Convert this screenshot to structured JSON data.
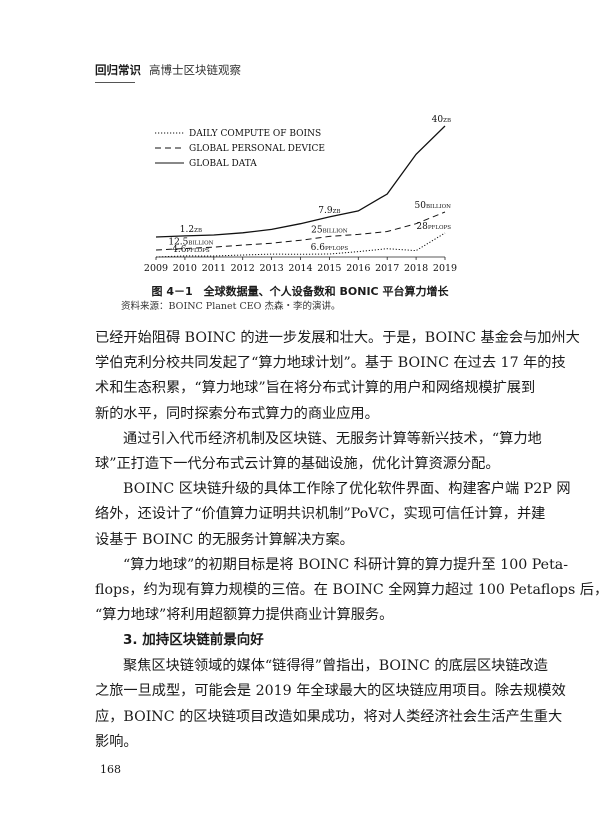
{
  "header": {
    "section": "回归常识",
    "book_title": "高博士区块链观察"
  },
  "chart_data": {
    "type": "line",
    "x": [
      2009,
      2010,
      2011,
      2012,
      2013,
      2014,
      2015,
      2016,
      2017,
      2018,
      2019
    ],
    "x_tick_labels": [
      "2009",
      "2010",
      "2011",
      "2012",
      "2013",
      "2014",
      "2015",
      "2016",
      "2017",
      "2018",
      "2019"
    ],
    "legend_placement": "top-left",
    "grid": false,
    "series": [
      {
        "name": "DAILY COMPUTE OF BOINS",
        "style": "dotted",
        "unit": "PFLOPS",
        "values": [
          3.5,
          4.6,
          4.5,
          5.5,
          6.5,
          6.3,
          6.6,
          9,
          12,
          10,
          28
        ]
      },
      {
        "name": "GLOBAL PERSONAL DEVICE",
        "style": "dashed",
        "unit": "BILLION",
        "values": [
          11,
          12.5,
          14,
          16,
          18,
          21,
          25,
          27,
          30,
          38,
          50
        ]
      },
      {
        "name": "GLOBAL DATA",
        "style": "solid",
        "unit": "ZB",
        "values": [
          0.8,
          1.2,
          1.5,
          2.3,
          3.5,
          5.5,
          7.9,
          10,
          16,
          30,
          40
        ]
      }
    ],
    "data_labels": [
      {
        "series": 2,
        "year": 2010,
        "value": "1.2",
        "unit": "ZB"
      },
      {
        "series": 2,
        "year": 2015,
        "value": "7.9",
        "unit": "ZB"
      },
      {
        "series": 2,
        "year": 2019,
        "value": "40",
        "unit": "ZB"
      },
      {
        "series": 1,
        "year": 2010,
        "value": "12.5",
        "unit": "BILLION"
      },
      {
        "series": 1,
        "year": 2015,
        "value": "25",
        "unit": "BILLION"
      },
      {
        "series": 1,
        "year": 2019,
        "value": "50",
        "unit": "BILLION"
      },
      {
        "series": 0,
        "year": 2010,
        "value": "4.6",
        "unit": "PFLOPS"
      },
      {
        "series": 0,
        "year": 2015,
        "value": "6.6",
        "unit": "PFLOPS"
      },
      {
        "series": 0,
        "year": 2019,
        "value": "28",
        "unit": "PFLOPS"
      }
    ]
  },
  "figure": {
    "caption": "图 4－1　全球数据量、个人设备数和 BONIC 平台算力增长",
    "source": "资料来源：BOINC Planet CEO 杰森・李的演讲。"
  },
  "body": {
    "lines": [
      {
        "text": "已经开始阻碍 BOINC 的进一步发展和壮大。于是，BOINC 基金会与加州大",
        "kind": "normal"
      },
      {
        "text": "学伯克利分校共同发起了“算力地球计划”。基于 BOINC 在过去 17 年的技",
        "kind": "normal"
      },
      {
        "text": "术和生态积累，“算力地球”旨在将分布式计算的用户和网络规模扩展到",
        "kind": "normal"
      },
      {
        "text": "新的水平，同时探索分布式算力的商业应用。",
        "kind": "last"
      },
      {
        "text": "通过引入代币经济机制及区块链、无服务计算等新兴技术，“算力地",
        "kind": "indent"
      },
      {
        "text": "球”正打造下一代分布式云计算的基础设施，优化计算资源分配。",
        "kind": "last"
      },
      {
        "text": "BOINC 区块链升级的具体工作除了优化软件界面、构建客户端 P2P 网",
        "kind": "indent"
      },
      {
        "text": "络外，还设计了“价值算力证明共识机制”PoVC，实现可信任计算，并建",
        "kind": "normal"
      },
      {
        "text": "设基于 BOINC 的无服务计算解决方案。",
        "kind": "last"
      },
      {
        "text": "“算力地球”的初期目标是将 BOINC 科研计算的算力提升至 100 Peta-",
        "kind": "indent"
      },
      {
        "text": "flops，约为现有算力规模的三倍。在 BOINC 全网算力超过 100 Petaflops 后，",
        "kind": "normal"
      },
      {
        "text": "“算力地球”将利用超额算力提供商业计算服务。",
        "kind": "last"
      },
      {
        "text": "3. 加持区块链前景向好",
        "kind": "heading"
      },
      {
        "text": "聚焦区块链领域的媒体“链得得”曾指出，BOINC 的底层区块链改造",
        "kind": "indent"
      },
      {
        "text": "之旅一旦成型，可能会是 2019 年全球最大的区块链应用项目。除去规模效",
        "kind": "normal"
      },
      {
        "text": "应，BOINC 的区块链项目改造如果成功，将对人类经济社会生活产生重大",
        "kind": "normal"
      },
      {
        "text": "影响。",
        "kind": "last"
      }
    ]
  },
  "page_number": "168"
}
